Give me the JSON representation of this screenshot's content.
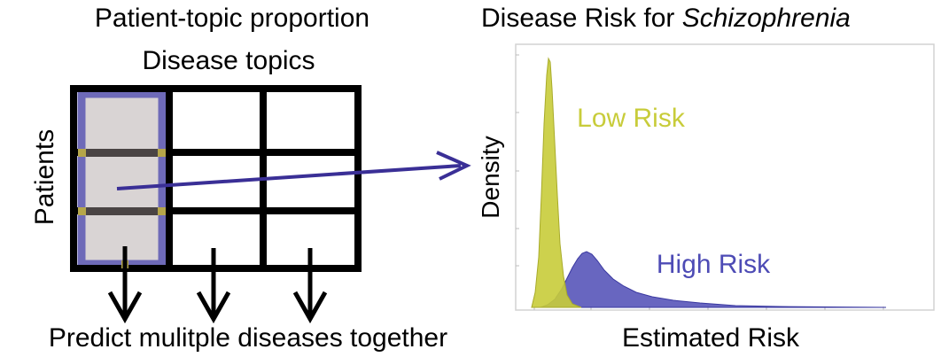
{
  "left_panel": {
    "title": "Patient-topic proportion",
    "column_label": "Disease topics",
    "row_label": "Patients",
    "caption": "Predict mulitple diseases together"
  },
  "right_panel": {
    "title_prefix": "Disease Risk for ",
    "title_disease": "Schizophrenia",
    "ylabel": "Density",
    "xlabel": "Estimated Risk",
    "low_risk_label": "Low Risk",
    "high_risk_label": "High Risk"
  },
  "colors": {
    "grid": "#000000",
    "highlight_fill": "#d9d4d4",
    "highlight_border": "#6e6ab8",
    "row_bar": "#4a4444",
    "intersection": "#b5a64a",
    "arrow_blue": "#3a2f96",
    "low_risk": "#c8cc3a",
    "high_risk": "#4d4bb5"
  },
  "icons": [
    "arrow-right-icon",
    "arrow-down-icon"
  ]
}
